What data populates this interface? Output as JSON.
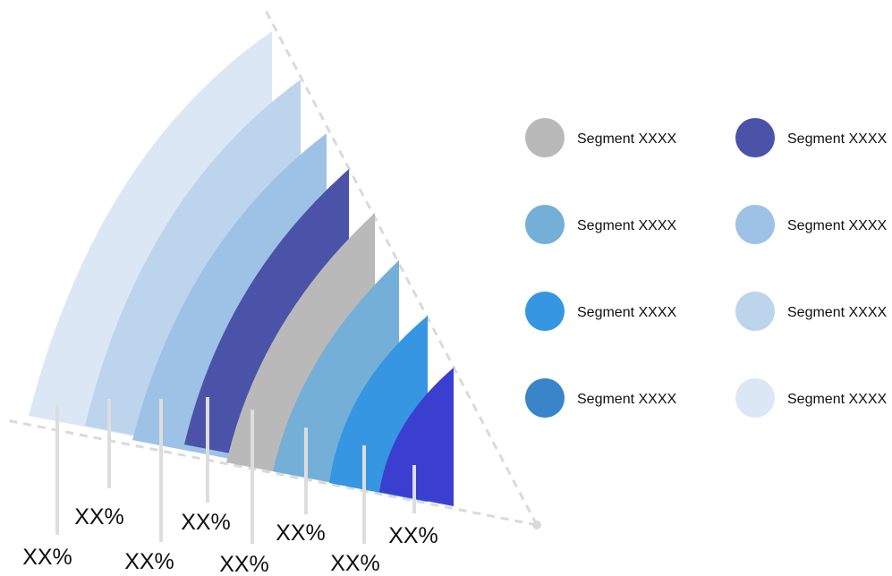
{
  "diagram": {
    "arcs": [
      {
        "color": "#dce7f5",
        "label": "XX%"
      },
      {
        "color": "#bdd4ed",
        "label": "XX%"
      },
      {
        "color": "#9ec1e6",
        "label": "XX%"
      },
      {
        "color": "#4a53a8",
        "label": "XX%"
      },
      {
        "color": "#b9b9b9",
        "label": "XX%"
      },
      {
        "color": "#74afd8",
        "label": "XX%"
      },
      {
        "color": "#3696e2",
        "label": "XX%"
      },
      {
        "color": "#3b3fcf",
        "label": "XX%"
      }
    ]
  },
  "legend": {
    "items": [
      {
        "label": "Segment XXXX",
        "color": "#b9b9b9"
      },
      {
        "label": "Segment XXXX",
        "color": "#74afd8"
      },
      {
        "label": "Segment XXXX",
        "color": "#3696e2"
      },
      {
        "label": "Segment XXXX",
        "color": "#3a84c9"
      },
      {
        "label": "Segment XXXX",
        "color": "#4a53a8"
      },
      {
        "label": "Segment XXXX",
        "color": "#9ec1e6"
      },
      {
        "label": "Segment XXXX",
        "color": "#bdd4ed"
      },
      {
        "label": "Segment XXXX",
        "color": "#dce7f5"
      }
    ]
  }
}
